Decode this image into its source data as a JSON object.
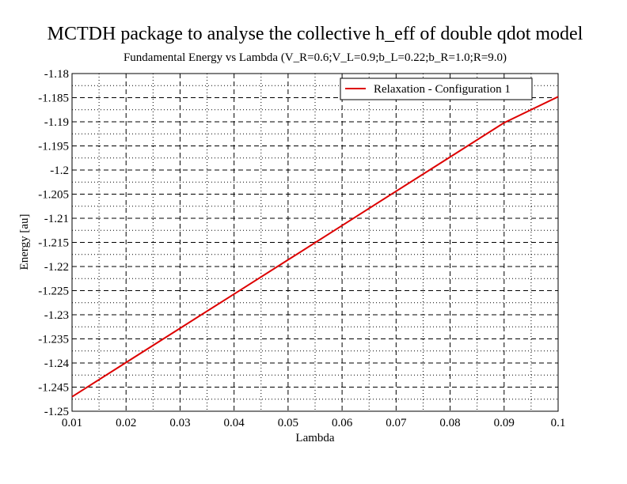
{
  "chart_data": {
    "type": "line",
    "title": "MCTDH package to analyse the collective h_eff of double qdot model",
    "subtitle": "Fundamental Energy vs Lambda (V_R=0.6;V_L=0.9;b_L=0.22;b_R=1.0;R=9.0)",
    "xlabel": "Lambda",
    "ylabel": "Energy [au]",
    "xlim": [
      0.01,
      0.1
    ],
    "ylim": [
      -1.25,
      -1.18
    ],
    "x_ticks": [
      0.01,
      0.02,
      0.03,
      0.04,
      0.05,
      0.06,
      0.07,
      0.08,
      0.09,
      0.1
    ],
    "x_tick_labels": [
      "0.01",
      "0.02",
      "0.03",
      "0.04",
      "0.05",
      "0.06",
      "0.07",
      "0.08",
      "0.09",
      "0.1"
    ],
    "y_ticks": [
      -1.18,
      -1.185,
      -1.19,
      -1.195,
      -1.2,
      -1.205,
      -1.21,
      -1.215,
      -1.22,
      -1.225,
      -1.23,
      -1.235,
      -1.24,
      -1.245,
      -1.25
    ],
    "y_tick_labels": [
      "-1.18",
      "-1.185",
      "-1.19",
      "-1.195",
      "-1.2",
      "-1.205",
      "-1.21",
      "-1.215",
      "-1.22",
      "-1.225",
      "-1.23",
      "-1.235",
      "-1.24",
      "-1.245",
      "-1.25"
    ],
    "grid": true,
    "legend_position": "top-right",
    "series": [
      {
        "name": "Relaxation - Configuration 1",
        "color": "#dd0000",
        "x": [
          0.01,
          0.02,
          0.03,
          0.04,
          0.05,
          0.06,
          0.07,
          0.08,
          0.09,
          0.1
        ],
        "y": [
          -1.247,
          -1.2399,
          -1.2328,
          -1.2257,
          -1.2186,
          -1.2115,
          -1.2044,
          -1.1973,
          -1.1902,
          -1.1848
        ]
      }
    ]
  }
}
